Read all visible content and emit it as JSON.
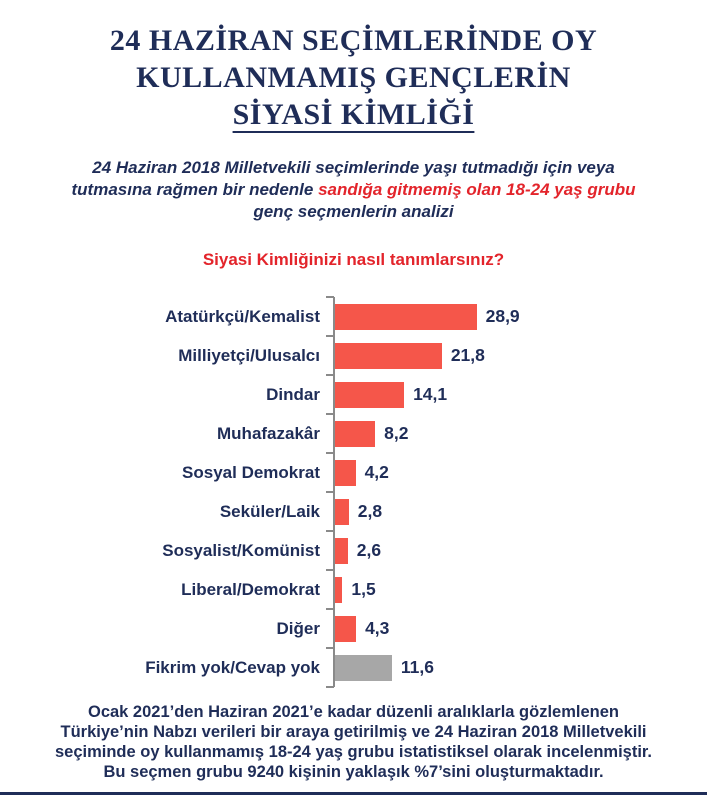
{
  "title": {
    "line1": "24 HAZİRAN SEÇİMLERİNDE OY",
    "line2": "KULLANMAMIŞ GENÇLERİN",
    "line3": "SİYASİ KİMLİĞİ"
  },
  "subtitle": {
    "line1": "24 Haziran  2018 Milletvekili seçimlerinde yaşı tutmadığı için veya",
    "line2_normal": "tutmasına rağmen bir nedenle ",
    "line2_highlight": "sandığa gitmemiş olan 18-24 yaş grubu",
    "line3": "genç seçmenlerin analizi"
  },
  "question": "Siyasi Kimliğinizi nasıl tanımlarsınız?",
  "chart_data": {
    "type": "bar",
    "orientation": "horizontal",
    "title": "Siyasi Kimliğinizi nasıl tanımlarsınız?",
    "categories": [
      "Atatürkçü/Kemalist",
      "Milliyetçi/Ulusalcı",
      "Dindar",
      "Muhafazakâr",
      "Sosyal Demokrat",
      "Seküler/Laik",
      "Sosyalist/Komünist",
      "Liberal/Demokrat",
      "Diğer",
      "Fikrim yok/Cevap yok"
    ],
    "values": [
      28.9,
      21.8,
      14.1,
      8.2,
      4.2,
      2.8,
      2.6,
      1.5,
      4.3,
      11.6
    ],
    "value_labels": [
      "28,9",
      "21,8",
      "14,1",
      "8,2",
      "4,2",
      "2,8",
      "2,6",
      "1,5",
      "4,3",
      "11,6"
    ],
    "bar_colors": [
      "#f5564a",
      "#f5564a",
      "#f5564a",
      "#f5564a",
      "#f5564a",
      "#f5564a",
      "#f5564a",
      "#f5564a",
      "#f5564a",
      "#a7a7a7"
    ],
    "xlim": [
      0,
      30
    ],
    "grid": false,
    "legend": false,
    "data_labels": true
  },
  "footer": {
    "line1": "Ocak 2021’den Haziran 2021’e kadar düzenli aralıklarla gözlemlenen",
    "line2": "Türkiye’nin Nabzı verileri bir araya getirilmiş ve 24 Haziran 2018 Milletvekili",
    "line3": "seçiminde oy kullanmamış 18-24 yaş grubu istatistiksel olarak incelenmiştir.",
    "line4": "Bu seçmen grubu 9240 kişinin yaklaşık %7’sini oluşturmaktadır."
  },
  "colors": {
    "navy_text": "#1f2d58",
    "red_text": "#e3242b",
    "bar_red": "#f5564a",
    "bar_gray": "#a7a7a7",
    "axis_gray": "#8a8a8a"
  }
}
